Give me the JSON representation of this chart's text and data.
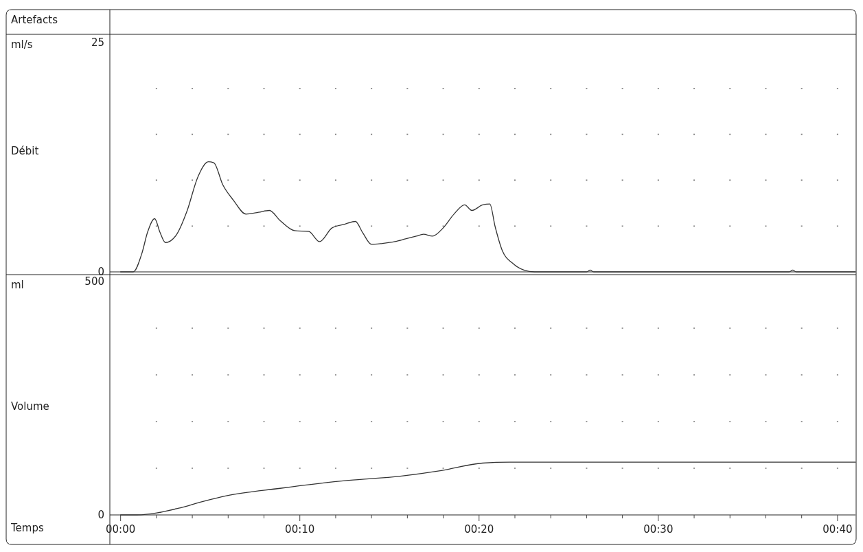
{
  "chart_data": [
    {
      "type": "line",
      "ylabel": "Débit",
      "annotations": [
        "Artefacts",
        "ml/s"
      ],
      "xlim": [
        -0.6,
        41
      ],
      "ylim": [
        0,
        25
      ],
      "yticks": [
        0,
        {
          "value": 5,
          "label": null
        },
        {
          "value": 10,
          "label": null
        },
        {
          "value": 15,
          "label": null
        },
        {
          "value": 20,
          "label": null
        },
        25
      ],
      "tick_labels": "y",
      "grid": "y",
      "series": [
        {
          "color": "#333333",
          "x": [
            0,
            0.7,
            1.2,
            1.5,
            1.9,
            2.2,
            2.5,
            3.1,
            3.7,
            4.3,
            4.9,
            5.2,
            5.7,
            6.3,
            7.0,
            7.7,
            8.3,
            8.9,
            9.7,
            10.5,
            11.1,
            11.8,
            12.5,
            13.1,
            13.5,
            14.0,
            14.6,
            15.3,
            15.9,
            16.5,
            16.9,
            17.4,
            18.0,
            18.6,
            19.2,
            19.6,
            20.2,
            20.6,
            20.9,
            21.3,
            21.9,
            22.5,
            23.1,
            26.0,
            26.2,
            26.4,
            37.3,
            37.5,
            37.7,
            41
          ],
          "values": [
            0,
            0,
            2.1,
            4.3,
            5.8,
            4.3,
            3.2,
            4.0,
            6.6,
            10.3,
            12.0,
            11.9,
            9.5,
            7.8,
            6.3,
            6.5,
            6.7,
            5.6,
            4.5,
            4.4,
            3.3,
            4.8,
            5.2,
            5.5,
            4.3,
            3.0,
            3.1,
            3.3,
            3.6,
            3.9,
            4.1,
            3.9,
            4.8,
            6.3,
            7.3,
            6.7,
            7.3,
            7.4,
            4.9,
            2.3,
            0.9,
            0.2,
            0,
            0,
            0.2,
            0,
            0,
            0.2,
            0,
            0
          ]
        }
      ]
    },
    {
      "type": "line",
      "ylabel": "Volume",
      "xlabel": "Temps",
      "annotations": [
        "ml"
      ],
      "grid": "y",
      "xlim": [
        -0.6,
        41
      ],
      "xticks": [
        {
          "value": 0,
          "label": "00:00"
        },
        {
          "value": 2,
          "label": null
        },
        {
          "value": 4,
          "label": null
        },
        {
          "value": 6,
          "label": null
        },
        {
          "value": 8,
          "label": null
        },
        {
          "value": 10,
          "label": "00:10"
        },
        {
          "value": 12,
          "label": null
        },
        {
          "value": 14,
          "label": null
        },
        {
          "value": 16,
          "label": null
        },
        {
          "value": 18,
          "label": null
        },
        {
          "value": 20,
          "label": "00:20"
        },
        {
          "value": 22,
          "label": null
        },
        {
          "value": 24,
          "label": null
        },
        {
          "value": 26,
          "label": null
        },
        {
          "value": 28,
          "label": null
        },
        {
          "value": 30,
          "label": "00:30"
        },
        {
          "value": 32,
          "label": null
        },
        {
          "value": 34,
          "label": null
        },
        {
          "value": 36,
          "label": null
        },
        {
          "value": 38,
          "label": null
        },
        {
          "value": 40,
          "label": "00:40"
        }
      ],
      "ylim": [
        0,
        500
      ],
      "yticks": [
        0,
        {
          "value": 100,
          "label": null
        },
        {
          "value": 200,
          "label": null
        },
        {
          "value": 300,
          "label": null
        },
        {
          "value": 400,
          "label": null
        },
        500
      ],
      "series": [
        {
          "color": "#333333",
          "x": [
            0,
            0.9,
            3.2,
            4.6,
            5.9,
            8.9,
            12.7,
            15.6,
            17.9,
            20.2,
            21.7,
            22.5,
            41
          ],
          "values": [
            0,
            0,
            14,
            29,
            41,
            57,
            74,
            83,
            95,
            111,
            113,
            113,
            113
          ]
        }
      ]
    }
  ]
}
